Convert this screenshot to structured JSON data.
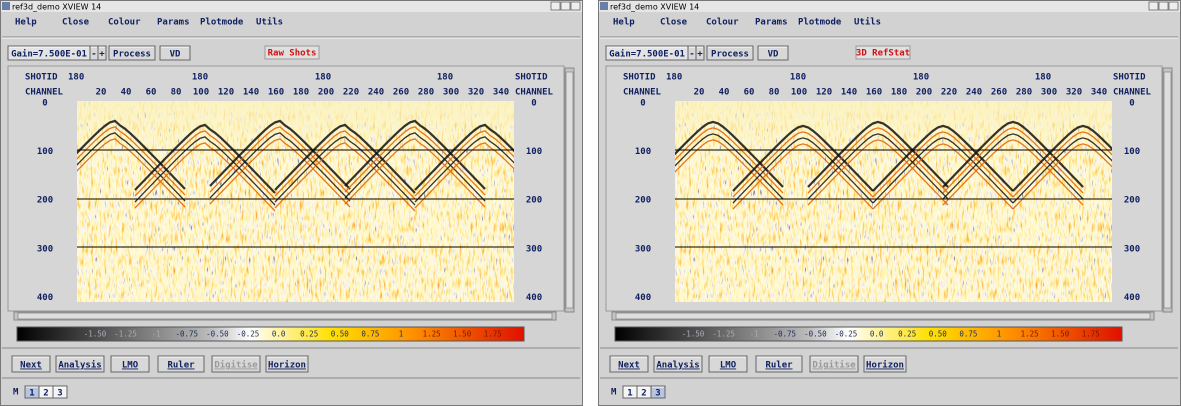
{
  "windows": [
    {
      "title": "ref3d_demo XVIEW 14",
      "mode_label": "Raw Shots",
      "active_page": "1"
    },
    {
      "title": "ref3d_demo XVIEW 14",
      "mode_label": "3D RefStat",
      "active_page": "3"
    }
  ],
  "menu": [
    "Help",
    "Close",
    "Colour",
    "Params",
    "Plotmode",
    "Utils"
  ],
  "toolbar": {
    "gain": "Gain=7.500E-01",
    "minus": "-",
    "plus": "+",
    "process": "Process",
    "vd": "VD"
  },
  "plot": {
    "shotid_label": "SHOTID",
    "channel_label": "CHANNEL",
    "shot_labels": [
      "180",
      "180",
      "180",
      "180"
    ],
    "channel_ticks": [
      "20",
      "40",
      "60",
      "80",
      "100",
      "120",
      "140",
      "160",
      "180",
      "200",
      "220",
      "240",
      "260",
      "280",
      "300",
      "320",
      "340"
    ],
    "depth_ticks": [
      "0",
      "100",
      "200",
      "300",
      "400"
    ]
  },
  "colorbar": [
    "-1.50",
    "-1.25",
    "-1",
    "-0.75",
    "-0.50",
    "-0.25",
    "0.0",
    "0.25",
    "0.50",
    "0.75",
    "1",
    "1.25",
    "1.50",
    "1.75"
  ],
  "buttons": [
    "Next",
    "Analysis",
    "LMO",
    "Ruler",
    "Digitise",
    "Horizon"
  ],
  "disabled": [
    false,
    false,
    false,
    false,
    true,
    false
  ],
  "pages": {
    "label": "M",
    "items": [
      "1",
      "2",
      "3"
    ]
  }
}
